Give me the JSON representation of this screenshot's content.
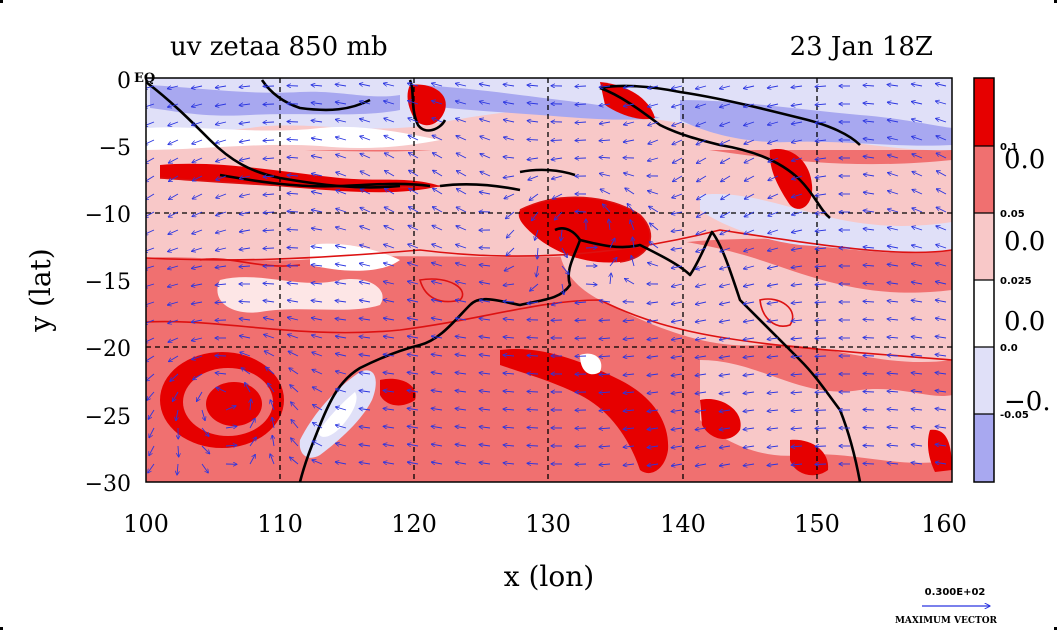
{
  "plot": {
    "title_left": "uv zetaa 850 mb",
    "title_right": "23 Jan 18Z",
    "x_label": "x (lon)",
    "y_label": "y (lat)",
    "eq_label": "EQ",
    "x_ticks": [
      "100",
      "110",
      "120",
      "130",
      "140",
      "150",
      "160"
    ],
    "y_ticks": [
      "0",
      "−5",
      "−10",
      "−15",
      "−20",
      "−25",
      "−30"
    ],
    "lon_range": [
      100,
      160
    ],
    "lat_range": [
      -30,
      0
    ]
  },
  "colorbar": {
    "levels_small": [
      "0.1",
      "0.05",
      "0.025",
      "0.0",
      "-0.05"
    ],
    "levels_large": [
      "0.0",
      "0.0",
      "0.0",
      "−0."
    ],
    "colors": [
      "#e60000",
      "#f07070",
      "#f8c8c8",
      "#ffffff",
      "#e0e0f8",
      "#a8a8f0"
    ]
  },
  "vector_key": {
    "magnitude": "0.300E+02",
    "label": "MAXIMUM VECTOR"
  },
  "colors": {
    "vector": "#2a35e0",
    "coast": "#000000",
    "contour": "#dd1111"
  },
  "chart_data": {
    "type": "heatmap",
    "title": "uv zetaa 850 mb",
    "subtitle": "23 Jan 18Z",
    "xlabel": "x (lon)",
    "ylabel": "y (lat)",
    "xlim": [
      100,
      160
    ],
    "ylim": [
      -30,
      0
    ],
    "grid": true,
    "legend": "right colorbar",
    "contour_levels": [
      -0.05,
      0.0,
      0.025,
      0.05,
      0.1
    ],
    "features": [
      {
        "name": "cyclonic vortex",
        "lon": 107,
        "lat": -24
      },
      {
        "name": "vorticity maximum",
        "lon": 133,
        "lat": -11
      },
      {
        "name": "rainband",
        "lon": 138,
        "lat": -27
      }
    ]
  }
}
